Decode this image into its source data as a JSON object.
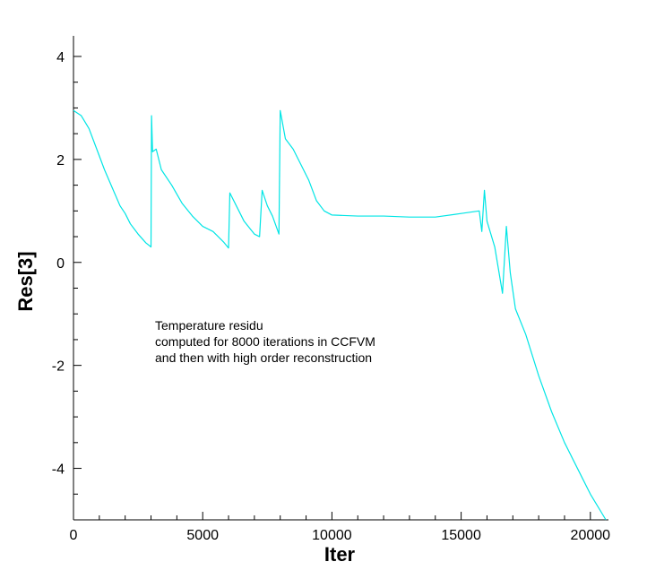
{
  "chart_data": {
    "type": "line",
    "xlabel": "Iter",
    "ylabel": "Res[3]",
    "xlim": [
      0,
      20700
    ],
    "ylim": [
      -5,
      4.4
    ],
    "x_ticks": [
      0,
      5000,
      10000,
      15000,
      20000
    ],
    "x_tick_labels": [
      "0",
      "5000",
      "10000",
      "15000",
      "20000"
    ],
    "y_ticks": [
      -4,
      -2,
      0,
      2,
      4
    ],
    "y_tick_labels": [
      "-4",
      "-2",
      "0",
      "2",
      "4"
    ],
    "grid": false,
    "annotation": [
      "Temperature residu",
      "computed for 8000 iterations in CCFVM",
      "and then with high order reconstruction"
    ],
    "series": [
      {
        "color": "#00e5e5",
        "points": [
          [
            0,
            2.95
          ],
          [
            300,
            2.85
          ],
          [
            600,
            2.6
          ],
          [
            900,
            2.2
          ],
          [
            1200,
            1.8
          ],
          [
            1500,
            1.45
          ],
          [
            1800,
            1.1
          ],
          [
            2000,
            0.95
          ],
          [
            2200,
            0.75
          ],
          [
            2500,
            0.55
          ],
          [
            2800,
            0.38
          ],
          [
            3000,
            0.3
          ],
          [
            3020,
            2.85
          ],
          [
            3060,
            2.15
          ],
          [
            3200,
            2.2
          ],
          [
            3400,
            1.8
          ],
          [
            3800,
            1.5
          ],
          [
            4200,
            1.15
          ],
          [
            4600,
            0.9
          ],
          [
            5000,
            0.7
          ],
          [
            5400,
            0.6
          ],
          [
            5800,
            0.4
          ],
          [
            6000,
            0.28
          ],
          [
            6050,
            1.35
          ],
          [
            6300,
            1.1
          ],
          [
            6600,
            0.8
          ],
          [
            7000,
            0.55
          ],
          [
            7200,
            0.5
          ],
          [
            7300,
            1.4
          ],
          [
            7500,
            1.1
          ],
          [
            7700,
            0.9
          ],
          [
            7950,
            0.55
          ],
          [
            8000,
            2.95
          ],
          [
            8200,
            2.4
          ],
          [
            8500,
            2.2
          ],
          [
            8800,
            1.9
          ],
          [
            9100,
            1.6
          ],
          [
            9400,
            1.2
          ],
          [
            9700,
            1.0
          ],
          [
            10000,
            0.92
          ],
          [
            11000,
            0.9
          ],
          [
            12000,
            0.9
          ],
          [
            13000,
            0.88
          ],
          [
            14000,
            0.88
          ],
          [
            15000,
            0.95
          ],
          [
            15700,
            1.0
          ],
          [
            15800,
            0.6
          ],
          [
            15900,
            1.4
          ],
          [
            16000,
            0.8
          ],
          [
            16300,
            0.3
          ],
          [
            16600,
            -0.6
          ],
          [
            16750,
            0.7
          ],
          [
            16900,
            -0.2
          ],
          [
            17100,
            -0.9
          ],
          [
            17500,
            -1.4
          ],
          [
            18000,
            -2.2
          ],
          [
            18500,
            -2.9
          ],
          [
            19000,
            -3.5
          ],
          [
            19500,
            -4.0
          ],
          [
            20000,
            -4.5
          ],
          [
            20600,
            -5.0
          ]
        ]
      }
    ]
  }
}
